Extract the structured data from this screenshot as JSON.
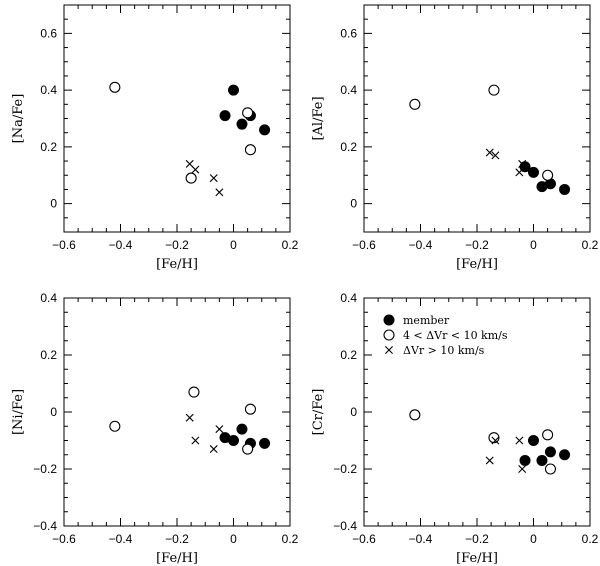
{
  "chart_data": [
    {
      "type": "scatter",
      "title": "",
      "xlabel": "[Fe/H]",
      "ylabel": "[Na/Fe]",
      "xlim": [
        -0.6,
        0.2
      ],
      "ylim": [
        -0.1,
        0.7
      ],
      "xticks": [
        -0.6,
        -0.4,
        -0.2,
        0,
        0.2
      ],
      "xticklabels": [
        "−0.6",
        "−0.4",
        "−0.2",
        "0",
        "0.2"
      ],
      "yticks": [
        0,
        0.2,
        0.4,
        0.6
      ],
      "yticklabels": [
        "0",
        "0.2",
        "0.4",
        "0.6"
      ],
      "series": [
        {
          "name": "member",
          "marker": "filled-circle",
          "x": [
            -0.03,
            0.0,
            0.03,
            0.06,
            0.11
          ],
          "y": [
            0.31,
            0.4,
            0.28,
            0.31,
            0.26
          ]
        },
        {
          "name": "4 < ΔVr < 10 km/s",
          "marker": "open-circle",
          "x": [
            -0.42,
            -0.15,
            0.05,
            0.06
          ],
          "y": [
            0.41,
            0.09,
            0.32,
            0.19
          ]
        },
        {
          "name": "ΔVr > 10 km/s",
          "marker": "cross",
          "x": [
            -0.155,
            -0.135,
            -0.07,
            -0.05
          ],
          "y": [
            0.14,
            0.12,
            0.09,
            0.04
          ]
        }
      ]
    },
    {
      "type": "scatter",
      "title": "",
      "xlabel": "[Fe/H]",
      "ylabel": "[Al/Fe]",
      "xlim": [
        -0.6,
        0.2
      ],
      "ylim": [
        -0.1,
        0.7
      ],
      "xticks": [
        -0.6,
        -0.4,
        -0.2,
        0,
        0.2
      ],
      "xticklabels": [
        "−0.6",
        "−0.4",
        "−0.2",
        "0",
        "0.2"
      ],
      "yticks": [
        0,
        0.2,
        0.4,
        0.6
      ],
      "yticklabels": [
        "0",
        "0.2",
        "0.4",
        "0.6"
      ],
      "series": [
        {
          "name": "member",
          "marker": "filled-circle",
          "x": [
            -0.03,
            0.0,
            0.03,
            0.06,
            0.11
          ],
          "y": [
            0.13,
            0.11,
            0.06,
            0.07,
            0.05
          ]
        },
        {
          "name": "4 < ΔVr < 10 km/s",
          "marker": "open-circle",
          "x": [
            -0.42,
            -0.14,
            0.05
          ],
          "y": [
            0.35,
            0.4,
            0.1
          ]
        },
        {
          "name": "ΔVr > 10 km/s",
          "marker": "cross",
          "x": [
            -0.155,
            -0.135,
            -0.05,
            -0.04
          ],
          "y": [
            0.18,
            0.17,
            0.11,
            0.14
          ]
        }
      ]
    },
    {
      "type": "scatter",
      "title": "",
      "xlabel": "[Fe/H]",
      "ylabel": "[Ni/Fe]",
      "xlim": [
        -0.6,
        0.2
      ],
      "ylim": [
        -0.4,
        0.4
      ],
      "xticks": [
        -0.6,
        -0.4,
        -0.2,
        0,
        0.2
      ],
      "xticklabels": [
        "−0.6",
        "−0.4",
        "−0.2",
        "0",
        "0.2"
      ],
      "yticks": [
        -0.4,
        -0.2,
        0,
        0.2,
        0.4
      ],
      "yticklabels": [
        "−0.4",
        "−0.2",
        "0",
        "0.2",
        "0.4"
      ],
      "series": [
        {
          "name": "member",
          "marker": "filled-circle",
          "x": [
            -0.03,
            0.0,
            0.03,
            0.06,
            0.11
          ],
          "y": [
            -0.09,
            -0.1,
            -0.06,
            -0.11,
            -0.11
          ]
        },
        {
          "name": "4 < ΔVr < 10 km/s",
          "marker": "open-circle",
          "x": [
            -0.42,
            -0.14,
            0.05,
            0.06
          ],
          "y": [
            -0.05,
            0.07,
            -0.13,
            0.01
          ]
        },
        {
          "name": "ΔVr > 10 km/s",
          "marker": "cross",
          "x": [
            -0.155,
            -0.135,
            -0.07,
            -0.05
          ],
          "y": [
            -0.02,
            -0.1,
            -0.13,
            -0.06
          ]
        }
      ]
    },
    {
      "type": "scatter",
      "title": "",
      "xlabel": "[Fe/H]",
      "ylabel": "[Cr/Fe]",
      "xlim": [
        -0.6,
        0.2
      ],
      "ylim": [
        -0.4,
        0.4
      ],
      "xticks": [
        -0.6,
        -0.4,
        -0.2,
        0,
        0.2
      ],
      "xticklabels": [
        "−0.6",
        "−0.4",
        "−0.2",
        "0",
        "0.2"
      ],
      "yticks": [
        -0.4,
        -0.2,
        0,
        0.2,
        0.4
      ],
      "yticklabels": [
        "−0.4",
        "−0.2",
        "0",
        "0.2",
        "0.4"
      ],
      "legend": {
        "placement": "top-left",
        "entries": [
          {
            "marker": "filled-circle",
            "label": "member"
          },
          {
            "marker": "open-circle",
            "label": "4 < ΔVr < 10 km/s"
          },
          {
            "marker": "cross",
            "label": "ΔVr > 10 km/s"
          }
        ]
      },
      "series": [
        {
          "name": "member",
          "marker": "filled-circle",
          "x": [
            -0.03,
            0.0,
            0.03,
            0.06,
            0.11
          ],
          "y": [
            -0.17,
            -0.1,
            -0.17,
            -0.14,
            -0.15
          ]
        },
        {
          "name": "4 < ΔVr < 10 km/s",
          "marker": "open-circle",
          "x": [
            -0.42,
            -0.14,
            0.05,
            0.06
          ],
          "y": [
            -0.01,
            -0.09,
            -0.08,
            -0.2
          ]
        },
        {
          "name": "ΔVr > 10 km/s",
          "marker": "cross",
          "x": [
            -0.155,
            -0.135,
            -0.05,
            -0.04
          ],
          "y": [
            -0.17,
            -0.1,
            -0.1,
            -0.2
          ]
        }
      ]
    }
  ]
}
